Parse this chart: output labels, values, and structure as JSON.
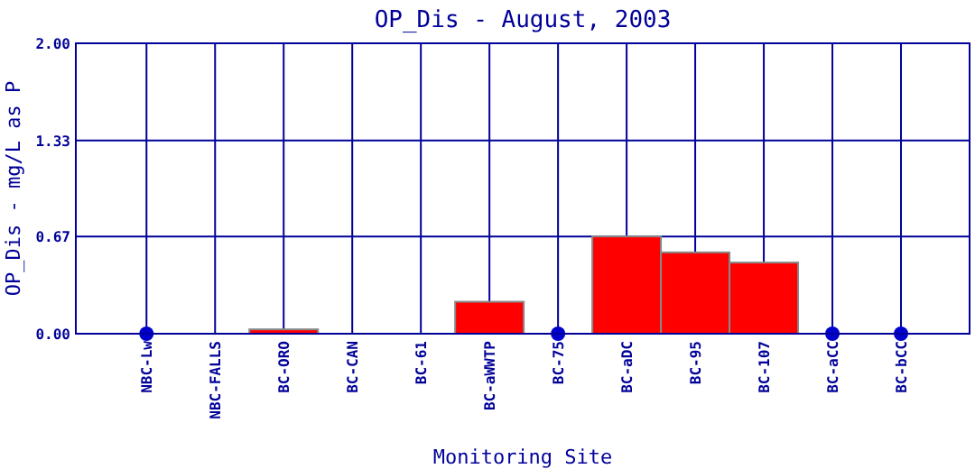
{
  "chart_data": {
    "type": "bar",
    "title": "OP_Dis - August, 2003",
    "xlabel": "Monitoring Site",
    "ylabel": "OP_Dis - mg/L as P",
    "categories": [
      "NBC-Lw",
      "NBC-FALLS",
      "BC-ORO",
      "BC-CAN",
      "BC-61",
      "BC-aWWTP",
      "BC-75",
      "BC-aDC",
      "BC-95",
      "BC-107",
      "BC-aCC",
      "BC-bCC"
    ],
    "series": [
      {
        "color": "#ff0000",
        "values": [
          null,
          0,
          0.03,
          0,
          0,
          0.22,
          null,
          0.67,
          0.56,
          0.49,
          null,
          null
        ]
      },
      {
        "type": "scatter",
        "color": "#0000cc",
        "x": [
          "NBC-Lw",
          "BC-75",
          "BC-aCC",
          "BC-bCC"
        ],
        "values": [
          0,
          0,
          0,
          0
        ]
      }
    ],
    "ylim": [
      0,
      2
    ],
    "yticks": [
      {
        "value": 0,
        "label": "0.00"
      },
      {
        "value": 0.67,
        "label": "0.67"
      },
      {
        "value": 1.33,
        "label": "1.33"
      },
      {
        "value": 2,
        "label": "2.00"
      }
    ],
    "grid": true,
    "marker": "circle"
  }
}
